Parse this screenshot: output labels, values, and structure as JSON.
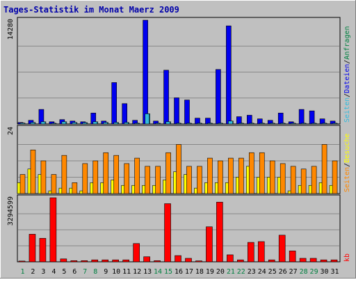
{
  "title": "Tages-Statistik im Monat Maerz 2009",
  "colors": {
    "background": "#c0c0c0",
    "title": "#0000aa",
    "grid": "#888888",
    "dateien": "#0000ee",
    "anfragen": "#33bbdd",
    "seiten_label": "#33bbdd",
    "seiten_bar": "#ffff00",
    "besuche": "#ff8800",
    "kb": "#ff0000",
    "day_normal": "#000000",
    "day_weekend": "#008040",
    "legend_sep": "#000000",
    "legend_anfragen": "#008040"
  },
  "chart_data": [
    {
      "type": "bar",
      "name": "hits-panel",
      "ylabel": "14280",
      "ymax": 14280,
      "legend": {
        "dateien": "Dateien",
        "anfragen": "Anfragen",
        "seiten": "Seiten",
        "sep": "/"
      },
      "series": [
        {
          "key": "anfragen",
          "values": [
            120,
            200,
            300,
            100,
            300,
            200,
            180,
            300,
            200,
            200,
            200,
            100,
            1400,
            100,
            300,
            100,
            100,
            100,
            100,
            100,
            400,
            100,
            100,
            100,
            100,
            100,
            100,
            100,
            100,
            100,
            100
          ]
        },
        {
          "key": "dateien",
          "values": [
            200,
            500,
            2000,
            300,
            600,
            400,
            300,
            1500,
            400,
            5700,
            2800,
            500,
            14280,
            400,
            7400,
            3600,
            3300,
            800,
            800,
            7500,
            13500,
            1000,
            1200,
            700,
            500,
            1500,
            300,
            2000,
            1800,
            700,
            400
          ]
        }
      ]
    },
    {
      "type": "bar",
      "name": "visits-panel",
      "ylabel": "24",
      "ymax": 24,
      "legend": {
        "seiten": "Seiten",
        "besuche": "Besuche",
        "sep": "/"
      },
      "series": [
        {
          "key": "seiten",
          "values": [
            4,
            9,
            7,
            1,
            2,
            2,
            1,
            4,
            4,
            5,
            3,
            3,
            3,
            3,
            5,
            8,
            7,
            2,
            4,
            4,
            4,
            6,
            10,
            6,
            6,
            6,
            1,
            3,
            3,
            4,
            3
          ]
        },
        {
          "key": "besuche",
          "values": [
            7,
            16,
            12,
            7,
            14,
            4,
            11,
            12,
            15,
            14,
            11,
            13,
            10,
            10,
            15,
            18,
            10,
            10,
            13,
            12,
            13,
            13,
            15,
            15,
            12,
            11,
            10,
            9,
            10,
            18,
            12
          ]
        }
      ]
    },
    {
      "type": "bar",
      "name": "kb-panel",
      "ylabel": "3294599",
      "ymax": 3294599,
      "legend": {
        "kb": "kb"
      },
      "series": [
        {
          "key": "kb",
          "values": [
            40000,
            1420000,
            1210000,
            3294599,
            150000,
            60000,
            60000,
            100000,
            100000,
            100000,
            100000,
            940000,
            260000,
            60000,
            2990000,
            320000,
            180000,
            50000,
            1800000,
            3070000,
            360000,
            100000,
            1000000,
            1040000,
            100000,
            1370000,
            560000,
            180000,
            180000,
            100000,
            100000
          ]
        }
      ],
      "categories": [
        "1",
        "2",
        "3",
        "4",
        "5",
        "6",
        "7",
        "8",
        "9",
        "10",
        "11",
        "12",
        "13",
        "14",
        "15",
        "16",
        "17",
        "18",
        "19",
        "20",
        "21",
        "22",
        "23",
        "24",
        "25",
        "26",
        "27",
        "28",
        "29",
        "30",
        "31"
      ],
      "weekend_days": [
        "1",
        "7",
        "8",
        "14",
        "15",
        "21",
        "22",
        "28",
        "29"
      ]
    }
  ]
}
